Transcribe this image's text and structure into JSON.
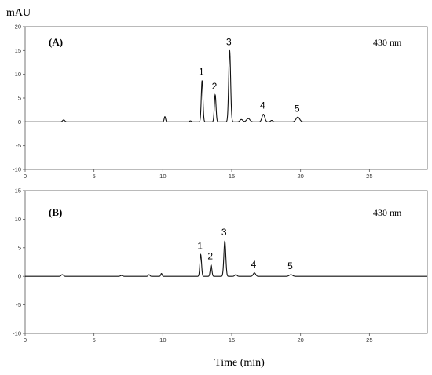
{
  "chart_data": {
    "type": "line",
    "ylabel": "mAU",
    "xlabel": "Time (min)",
    "panels": [
      {
        "label": "(A)",
        "wavelength": "430 nm",
        "xlim": [
          0,
          29.2
        ],
        "ylim": [
          -10,
          20
        ],
        "xticks": [
          0,
          5,
          10,
          15,
          20,
          25
        ],
        "yticks": [
          -10,
          -5,
          0,
          5,
          10,
          15,
          20
        ],
        "baseline": 0,
        "peaks": [
          {
            "x": 2.8,
            "y": 0.4,
            "w": 0.08
          },
          {
            "x": 10.15,
            "y": 1.1,
            "w": 0.05
          },
          {
            "x": 12.0,
            "y": 0.2,
            "w": 0.06
          },
          {
            "x": 12.85,
            "y": 8.7,
            "w": 0.06,
            "label": "1"
          },
          {
            "x": 13.8,
            "y": 5.7,
            "w": 0.06,
            "label": "2"
          },
          {
            "x": 14.85,
            "y": 15.0,
            "w": 0.07,
            "label": "3"
          },
          {
            "x": 15.7,
            "y": 0.5,
            "w": 0.1
          },
          {
            "x": 16.2,
            "y": 0.7,
            "w": 0.12
          },
          {
            "x": 17.3,
            "y": 1.6,
            "w": 0.1,
            "label": "4"
          },
          {
            "x": 17.9,
            "y": 0.3,
            "w": 0.08
          },
          {
            "x": 19.8,
            "y": 1.0,
            "w": 0.13,
            "label": "5"
          }
        ]
      },
      {
        "label": "(B)",
        "wavelength": "430 nm",
        "xlim": [
          0,
          29.2
        ],
        "ylim": [
          -10,
          15
        ],
        "xticks": [
          0,
          5,
          10,
          15,
          20,
          25
        ],
        "yticks": [
          -10,
          -5,
          0,
          5,
          10,
          15
        ],
        "baseline": 0,
        "peaks": [
          {
            "x": 2.7,
            "y": 0.3,
            "w": 0.08
          },
          {
            "x": 7.0,
            "y": 0.15,
            "w": 0.08
          },
          {
            "x": 9.0,
            "y": 0.3,
            "w": 0.06
          },
          {
            "x": 9.9,
            "y": 0.5,
            "w": 0.05
          },
          {
            "x": 12.75,
            "y": 3.8,
            "w": 0.06,
            "label": "1"
          },
          {
            "x": 13.5,
            "y": 2.0,
            "w": 0.06,
            "label": "2"
          },
          {
            "x": 14.5,
            "y": 6.2,
            "w": 0.07,
            "label": "3"
          },
          {
            "x": 15.3,
            "y": 0.3,
            "w": 0.08
          },
          {
            "x": 16.65,
            "y": 0.6,
            "w": 0.09,
            "label": "4"
          },
          {
            "x": 19.3,
            "y": 0.3,
            "w": 0.12,
            "label": "5"
          }
        ]
      }
    ]
  }
}
